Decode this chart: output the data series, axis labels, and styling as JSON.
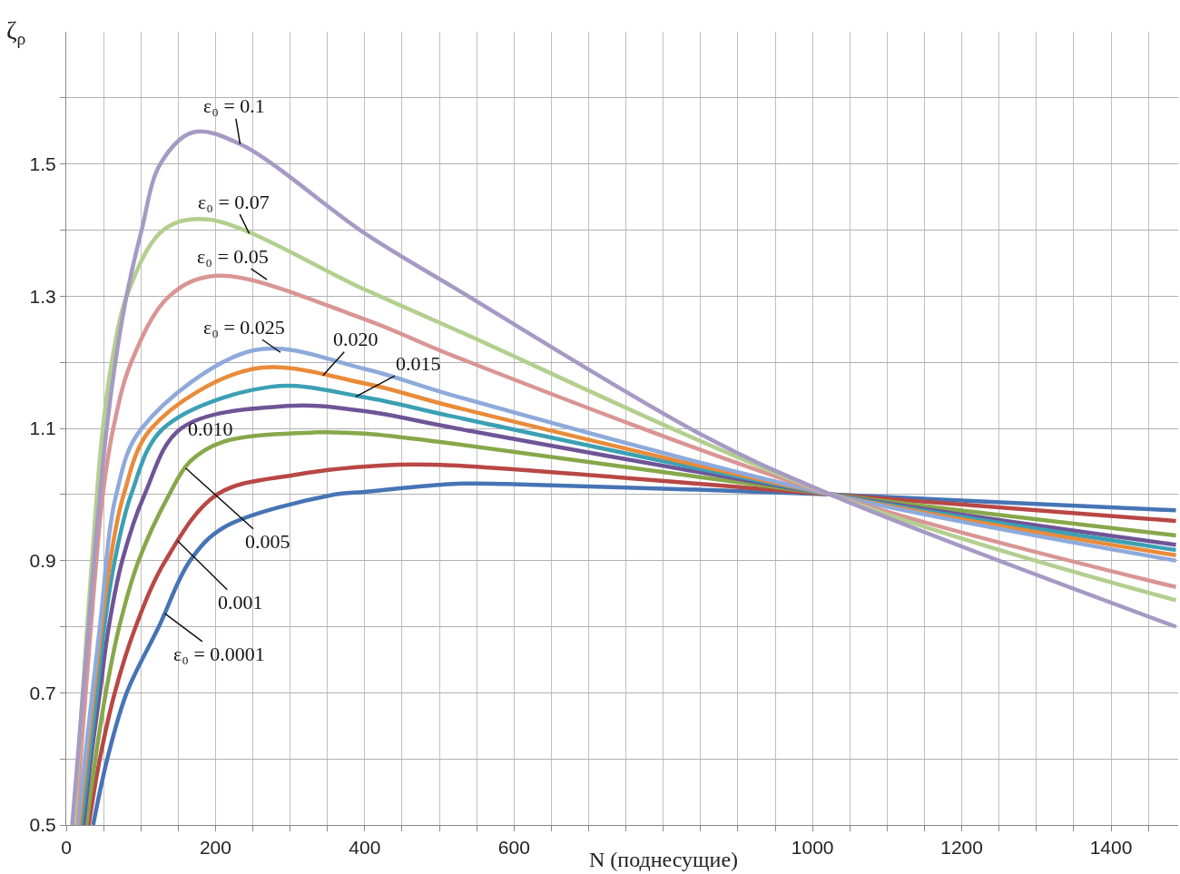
{
  "chart_data": {
    "type": "line",
    "xlabel": "N (поднесущие)",
    "ylabel": "ζ$_{ρ}$",
    "xlim": [
      0,
      1490
    ],
    "ylim": [
      0.5,
      1.7
    ],
    "xticks": [
      0,
      {
        "value": 50,
        "label": null
      },
      {
        "value": 100,
        "label": null
      },
      {
        "value": 150,
        "label": null
      },
      200,
      {
        "value": 250,
        "label": null
      },
      {
        "value": 300,
        "label": null
      },
      {
        "value": 350,
        "label": null
      },
      400,
      {
        "value": 450,
        "label": null
      },
      {
        "value": 500,
        "label": null
      },
      {
        "value": 550,
        "label": null
      },
      600,
      {
        "value": 650,
        "label": null
      },
      {
        "value": 700,
        "label": null
      },
      {
        "value": 750,
        "label": null
      },
      {
        "value": 800,
        "label": null
      },
      {
        "value": 850,
        "label": null
      },
      {
        "value": 900,
        "label": null
      },
      {
        "value": 950,
        "label": null
      },
      1000,
      {
        "value": 1050,
        "label": null
      },
      {
        "value": 1100,
        "label": null
      },
      {
        "value": 1150,
        "label": null
      },
      1200,
      {
        "value": 1250,
        "label": null
      },
      {
        "value": 1300,
        "label": null
      },
      {
        "value": 1350,
        "label": null
      },
      1400,
      {
        "value": 1450,
        "label": null
      }
    ],
    "yticks": [
      0.5,
      {
        "value": 0.6,
        "label": null
      },
      0.7,
      {
        "value": 0.8,
        "label": null
      },
      0.9,
      {
        "value": 1.0,
        "label": null
      },
      1.1,
      {
        "value": 1.2,
        "label": null
      },
      1.3,
      {
        "value": 1.4,
        "label": null
      },
      1.5,
      {
        "value": 1.6,
        "label": null
      }
    ],
    "grid": true,
    "marker": "none",
    "line_style": "solid",
    "series": [
      {
        "color": "#4674b5",
        "x": [
          36,
          55,
          81,
          124,
          166,
          211,
          360,
          400,
          518,
          590,
          1024,
          1487
        ],
        "values": [
          0.5,
          0.6,
          0.7,
          0.8,
          0.9,
          0.95,
          1.0,
          1.004,
          1.016,
          1.016,
          1.0,
          0.976
        ]
      },
      {
        "color": "#b84745",
        "x": [
          30,
          45,
          65,
          93,
          133,
          202,
          308,
          445,
          518,
          1024,
          1487
        ],
        "values": [
          0.5,
          0.6,
          0.7,
          0.8,
          0.9,
          1.0,
          1.03,
          1.045,
          1.044,
          1.0,
          0.96
        ]
      },
      {
        "color": "#86a84a",
        "x": [
          27,
          39,
          53,
          71,
          97,
          138,
          166,
          211,
          336,
          400,
          518,
          1024,
          1487
        ],
        "values": [
          0.5,
          0.6,
          0.7,
          0.8,
          0.9,
          1.0,
          1.05,
          1.08,
          1.094,
          1.092,
          1.077,
          1.0,
          0.938
        ]
      },
      {
        "color": "#6f5497",
        "x": [
          23,
          33,
          45,
          57,
          75,
          105,
          154,
          296,
          400,
          518,
          1024,
          1487
        ],
        "values": [
          0.5,
          0.6,
          0.7,
          0.8,
          0.9,
          1.0,
          1.1,
          1.134,
          1.126,
          1.101,
          1.0,
          0.924
        ]
      },
      {
        "color": "#3ca0b4",
        "x": [
          20,
          41,
          51,
          65,
          87,
          130,
          275,
          400,
          518,
          1024,
          1487
        ],
        "values": [
          0.5,
          0.7,
          0.8,
          0.9,
          1.0,
          1.1,
          1.163,
          1.147,
          1.118,
          1.0,
          0.916
        ]
      },
      {
        "color": "#e98b3a",
        "x": [
          17,
          37,
          59,
          77,
          114,
          250,
          400,
          518,
          1024,
          1487
        ],
        "values": [
          0.5,
          0.7,
          0.9,
          1.0,
          1.1,
          1.19,
          1.168,
          1.133,
          1.0,
          0.908
        ]
      },
      {
        "color": "#8eaadb",
        "x": [
          15,
          45,
          67,
          101,
          251,
          400,
          518,
          1024,
          1487
        ],
        "values": [
          0.5,
          0.8,
          1.0,
          1.1,
          1.218,
          1.19,
          1.15,
          1.0,
          0.9
        ]
      },
      {
        "color": "#d99594",
        "x": [
          12,
          33,
          49,
          63,
          87,
          138,
          202,
          400,
          518,
          1024,
          1487
        ],
        "values": [
          0.5,
          0.8,
          1.0,
          1.1,
          1.2,
          1.3,
          1.331,
          1.265,
          1.21,
          1.0,
          0.86
        ]
      },
      {
        "color": "#b3cf8f",
        "x": [
          10,
          28,
          41,
          49,
          61,
          81,
          130,
          190,
          400,
          518,
          1024,
          1487
        ],
        "values": [
          0.5,
          0.8,
          1.0,
          1.1,
          1.2,
          1.3,
          1.4,
          1.416,
          1.31,
          1.251,
          1.0,
          0.84
        ]
      },
      {
        "color": "#a699c4",
        "x": [
          8,
          24,
          55,
          79,
          101,
          126,
          170,
          233,
          400,
          518,
          852,
          1024,
          1487
        ],
        "values": [
          0.5,
          0.72,
          1.108,
          1.29,
          1.4,
          1.5,
          1.548,
          1.53,
          1.395,
          1.314,
          1.09,
          1.0,
          0.8
        ]
      }
    ],
    "annotations": [
      {
        "text": "ε₀ = 0.1",
        "x": 233,
        "y": 1.53
      },
      {
        "text": "ε₀ = 0.07",
        "x": 245,
        "y": 1.395
      },
      {
        "text": "ε₀ = 0.05",
        "x": 269,
        "y": 1.325
      },
      {
        "text": "ε₀ = 0.025",
        "x": 287,
        "y": 1.215
      },
      {
        "text": "0.020",
        "x": 344,
        "y": 1.18
      },
      {
        "text": "0.015",
        "x": 388,
        "y": 1.148
      },
      "0.010",
      {
        "text": "0.005",
        "x": 160,
        "y": 1.04
      },
      {
        "text": "0.001",
        "x": 149,
        "y": 0.93
      },
      {
        "text": "ε₀ = 0.0001",
        "x": 132,
        "y": 0.82
      }
    ]
  }
}
